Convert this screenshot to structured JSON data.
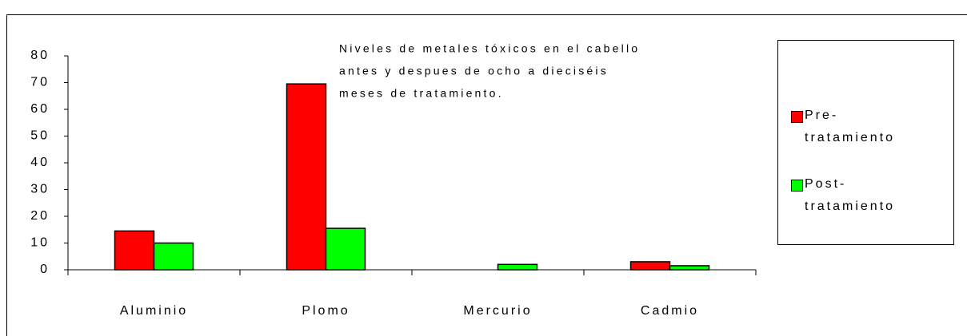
{
  "chart_data": {
    "type": "bar",
    "title": [
      "Niveles de metales tóxicos en el cabello",
      "antes y despues de ocho a dieciséis",
      "meses de tratamiento."
    ],
    "categories": [
      "Aluminio",
      "Plomo",
      "Mercurio",
      "Cadmio"
    ],
    "series": [
      {
        "name": "Pre-tratamiento",
        "color": "#ff0000",
        "values": [
          14.5,
          69.5,
          0,
          3
        ]
      },
      {
        "name": "Post-tratamiento",
        "color": "#00ff00",
        "values": [
          10,
          15.5,
          2,
          1.5
        ]
      }
    ],
    "ylim": [
      0,
      80
    ],
    "yticks": [
      0,
      10,
      20,
      30,
      40,
      50,
      60,
      70,
      80
    ],
    "grid": false,
    "legend": "right"
  }
}
